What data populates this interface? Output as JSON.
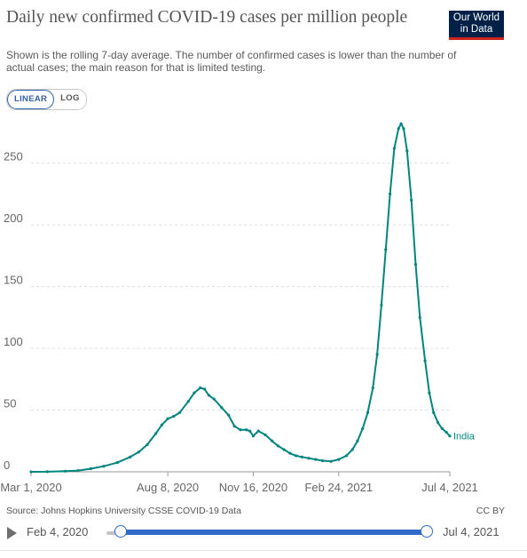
{
  "header": {
    "title": "Daily new confirmed COVID-19 cases per million people",
    "subtitle": "Shown is the rolling 7-day average. The number of confirmed cases is lower than the number of actual cases; the main reason for that is limited testing.",
    "logo": "Our World in Data"
  },
  "controls": {
    "linear_label": "LINEAR",
    "log_label": "LOG"
  },
  "footer": {
    "source": "Source: Johns Hopkins University CSSE COVID-19 Data",
    "license": "CC BY"
  },
  "timeline": {
    "start_label": "Feb 4, 2020",
    "end_label": "Jul 4, 2021"
  },
  "chart_data": {
    "type": "line",
    "scale": "linear",
    "grid": true,
    "x_is_date": true,
    "x_ticks": [
      "Mar 1, 2020",
      "Aug 8, 2020",
      "Nov 16, 2020",
      "Feb 24, 2021",
      "Jul 4, 2021"
    ],
    "y_ticks": [
      0,
      50,
      100,
      150,
      200,
      250
    ],
    "ylim": [
      0,
      285
    ],
    "xlim": [
      "2020-03-01",
      "2021-07-04"
    ],
    "color": "#00847e",
    "series": [
      {
        "name": "India",
        "points": [
          [
            "2020-03-01",
            0
          ],
          [
            "2020-03-20",
            0.1
          ],
          [
            "2020-04-10",
            0.5
          ],
          [
            "2020-04-25",
            1
          ],
          [
            "2020-05-10",
            2.5
          ],
          [
            "2020-05-25",
            4.5
          ],
          [
            "2020-06-10",
            7.5
          ],
          [
            "2020-06-25",
            12
          ],
          [
            "2020-07-05",
            16
          ],
          [
            "2020-07-15",
            22
          ],
          [
            "2020-07-25",
            31
          ],
          [
            "2020-08-01",
            38
          ],
          [
            "2020-08-08",
            43
          ],
          [
            "2020-08-15",
            45
          ],
          [
            "2020-08-22",
            48
          ],
          [
            "2020-09-01",
            57
          ],
          [
            "2020-09-08",
            64
          ],
          [
            "2020-09-15",
            68
          ],
          [
            "2020-09-20",
            67
          ],
          [
            "2020-09-25",
            62
          ],
          [
            "2020-10-01",
            59
          ],
          [
            "2020-10-10",
            52
          ],
          [
            "2020-10-18",
            46
          ],
          [
            "2020-10-25",
            37
          ],
          [
            "2020-11-01",
            34
          ],
          [
            "2020-11-08",
            34
          ],
          [
            "2020-11-12",
            33
          ],
          [
            "2020-11-16",
            29
          ],
          [
            "2020-11-22",
            33
          ],
          [
            "2020-11-30",
            30
          ],
          [
            "2020-12-08",
            25
          ],
          [
            "2020-12-15",
            21
          ],
          [
            "2020-12-22",
            18
          ],
          [
            "2020-12-29",
            15
          ],
          [
            "2021-01-05",
            13
          ],
          [
            "2021-01-12",
            12
          ],
          [
            "2021-01-20",
            11
          ],
          [
            "2021-01-28",
            10
          ],
          [
            "2021-02-05",
            9
          ],
          [
            "2021-02-15",
            8.5
          ],
          [
            "2021-02-24",
            10
          ],
          [
            "2021-03-05",
            13
          ],
          [
            "2021-03-12",
            18
          ],
          [
            "2021-03-18",
            25
          ],
          [
            "2021-03-24",
            35
          ],
          [
            "2021-03-30",
            48
          ],
          [
            "2021-04-05",
            68
          ],
          [
            "2021-04-10",
            95
          ],
          [
            "2021-04-15",
            135
          ],
          [
            "2021-04-20",
            180
          ],
          [
            "2021-04-25",
            225
          ],
          [
            "2021-04-30",
            262
          ],
          [
            "2021-05-05",
            278
          ],
          [
            "2021-05-08",
            282
          ],
          [
            "2021-05-11",
            278
          ],
          [
            "2021-05-15",
            260
          ],
          [
            "2021-05-20",
            220
          ],
          [
            "2021-05-25",
            168
          ],
          [
            "2021-05-30",
            125
          ],
          [
            "2021-06-05",
            90
          ],
          [
            "2021-06-10",
            64
          ],
          [
            "2021-06-15",
            48
          ],
          [
            "2021-06-20",
            40
          ],
          [
            "2021-06-25",
            35
          ],
          [
            "2021-06-30",
            32
          ],
          [
            "2021-07-04",
            29
          ]
        ]
      }
    ]
  }
}
